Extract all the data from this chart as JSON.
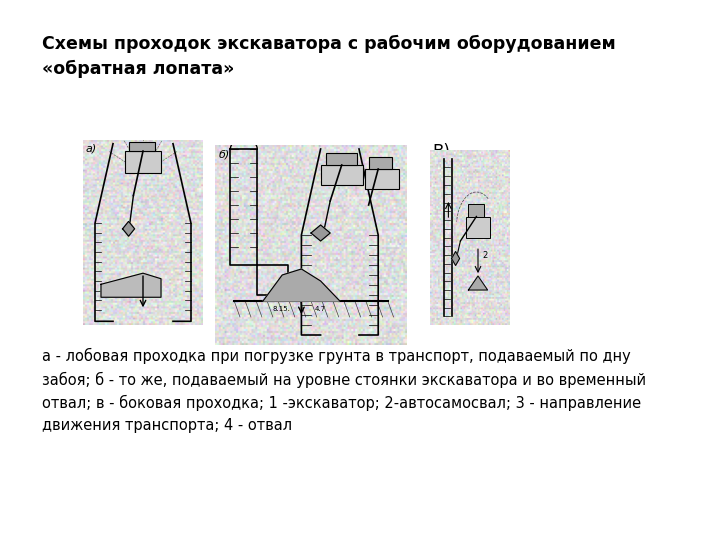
{
  "title_line1": "Схемы проходок экскаватора с рабочим оборудованием",
  "title_line2": "«обратная лопата»",
  "label_a": "а)",
  "label_b": "б)",
  "label_v": "В)",
  "caption": "а - лобовая проходка при погрузке грунта в транспорт, подаваемый по дну\nзабоя; б - то же, подаваемый на уровне стоянки экскаватора и во временный\nотвал; в - боковая проходка; 1 -экскаватор; 2-автосамосвал; 3 - направление\nдвижения транспорта; 4 - отвал",
  "background_color": "#ffffff",
  "title_fontsize": 12.5,
  "caption_fontsize": 10.5,
  "label_v_fontsize": 12
}
